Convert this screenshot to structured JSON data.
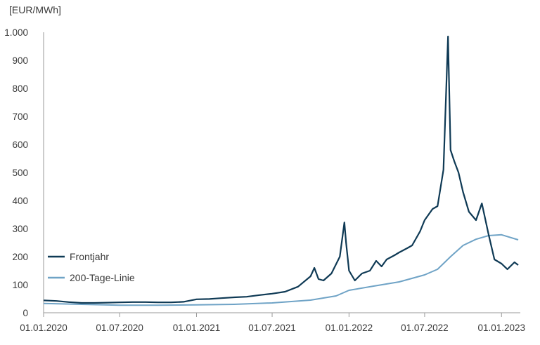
{
  "chart_data": {
    "type": "line",
    "ylabel": "[EUR/MWh]",
    "ylim": [
      0,
      1000
    ],
    "xlim": [
      "2020-01-01",
      "2023-02-15"
    ],
    "y_ticks": [
      0,
      100,
      200,
      300,
      400,
      500,
      600,
      700,
      800,
      900,
      1000
    ],
    "y_tick_labels": [
      "0",
      "100",
      "200",
      "300",
      "400",
      "500",
      "600",
      "700",
      "800",
      "900",
      "1.000"
    ],
    "x_ticks": [
      "2020-01-01",
      "2020-07-01",
      "2021-01-01",
      "2021-07-01",
      "2022-01-01",
      "2022-07-01",
      "2023-01-01"
    ],
    "x_tick_labels": [
      "01.01.2020",
      "01.07.2020",
      "01.01.2021",
      "01.07.2021",
      "01.01.2022",
      "01.07.2022",
      "01.01.2023"
    ],
    "grid": false,
    "legend": "lower-left",
    "series": [
      {
        "name": "Frontjahr",
        "color": "#0f3a55",
        "points": [
          [
            "2020-01-01",
            44
          ],
          [
            "2020-02-01",
            42
          ],
          [
            "2020-03-01",
            38
          ],
          [
            "2020-04-01",
            35
          ],
          [
            "2020-05-01",
            35
          ],
          [
            "2020-06-01",
            36
          ],
          [
            "2020-07-01",
            37
          ],
          [
            "2020-08-01",
            38
          ],
          [
            "2020-09-01",
            38
          ],
          [
            "2020-10-01",
            37
          ],
          [
            "2020-11-01",
            37
          ],
          [
            "2020-12-01",
            39
          ],
          [
            "2021-01-01",
            48
          ],
          [
            "2021-02-01",
            49
          ],
          [
            "2021-03-01",
            52
          ],
          [
            "2021-04-01",
            55
          ],
          [
            "2021-05-01",
            57
          ],
          [
            "2021-06-01",
            63
          ],
          [
            "2021-07-01",
            68
          ],
          [
            "2021-08-01",
            75
          ],
          [
            "2021-09-01",
            93
          ],
          [
            "2021-10-01",
            130
          ],
          [
            "2021-10-10",
            160
          ],
          [
            "2021-10-20",
            120
          ],
          [
            "2021-11-01",
            115
          ],
          [
            "2021-11-20",
            140
          ],
          [
            "2021-12-10",
            200
          ],
          [
            "2021-12-21",
            322
          ],
          [
            "2021-12-25",
            250
          ],
          [
            "2022-01-01",
            150
          ],
          [
            "2022-01-15",
            115
          ],
          [
            "2022-02-01",
            140
          ],
          [
            "2022-02-20",
            150
          ],
          [
            "2022-03-07",
            185
          ],
          [
            "2022-03-20",
            165
          ],
          [
            "2022-04-01",
            190
          ],
          [
            "2022-04-20",
            205
          ],
          [
            "2022-05-01",
            215
          ],
          [
            "2022-05-20",
            230
          ],
          [
            "2022-06-01",
            240
          ],
          [
            "2022-06-20",
            290
          ],
          [
            "2022-07-01",
            330
          ],
          [
            "2022-07-20",
            370
          ],
          [
            "2022-08-01",
            380
          ],
          [
            "2022-08-15",
            510
          ],
          [
            "2022-08-26",
            985
          ],
          [
            "2022-09-01",
            580
          ],
          [
            "2022-09-10",
            540
          ],
          [
            "2022-09-20",
            500
          ],
          [
            "2022-10-01",
            430
          ],
          [
            "2022-10-15",
            360
          ],
          [
            "2022-11-01",
            330
          ],
          [
            "2022-11-15",
            390
          ],
          [
            "2022-12-01",
            280
          ],
          [
            "2022-12-15",
            190
          ],
          [
            "2023-01-01",
            175
          ],
          [
            "2023-01-15",
            155
          ],
          [
            "2023-02-01",
            180
          ],
          [
            "2023-02-10",
            170
          ]
        ]
      },
      {
        "name": "200-Tage-Linie",
        "color": "#6fa3c6",
        "points": [
          [
            "2020-01-01",
            33
          ],
          [
            "2020-04-01",
            30
          ],
          [
            "2020-07-01",
            27
          ],
          [
            "2020-10-01",
            27
          ],
          [
            "2021-01-01",
            28
          ],
          [
            "2021-04-01",
            30
          ],
          [
            "2021-07-01",
            35
          ],
          [
            "2021-10-01",
            45
          ],
          [
            "2021-12-01",
            60
          ],
          [
            "2022-01-01",
            80
          ],
          [
            "2022-03-01",
            95
          ],
          [
            "2022-05-01",
            110
          ],
          [
            "2022-07-01",
            135
          ],
          [
            "2022-08-01",
            155
          ],
          [
            "2022-09-01",
            200
          ],
          [
            "2022-10-01",
            240
          ],
          [
            "2022-11-01",
            262
          ],
          [
            "2022-12-01",
            275
          ],
          [
            "2023-01-01",
            278
          ],
          [
            "2023-02-10",
            260
          ]
        ]
      }
    ]
  }
}
